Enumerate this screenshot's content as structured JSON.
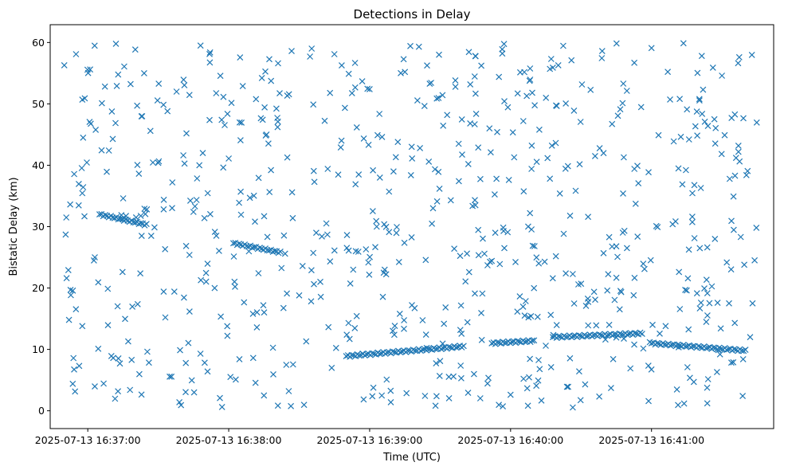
{
  "chart_data": {
    "type": "scatter",
    "title": "Detections in Delay",
    "xlabel": "Time (UTC)",
    "ylabel": "Bistatic Delay (km)",
    "marker": "x",
    "color": "#1f77b4",
    "grid": false,
    "legend": false,
    "x_range": [
      "2025-07-13 16:36:44",
      "2025-07-13 16:41:52"
    ],
    "ylim": [
      -2.9,
      62.9
    ],
    "x_ticks": [
      "2025-07-13 16:37:00",
      "2025-07-13 16:38:00",
      "2025-07-13 16:39:00",
      "2025-07-13 16:40:00",
      "2025-07-13 16:41:00"
    ],
    "y_ticks": [
      0,
      10,
      20,
      30,
      40,
      50,
      60
    ],
    "tracks": [
      {
        "t_start": "2025-07-13 16:37:05",
        "t_end": "2025-07-13 16:37:25",
        "delay_start": 32.0,
        "delay_end": 30.3
      },
      {
        "t_start": "2025-07-13 16:38:02",
        "t_end": "2025-07-13 16:38:22",
        "delay_start": 27.3,
        "delay_end": 25.8
      },
      {
        "t_start": "2025-07-13 16:38:50",
        "t_end": "2025-07-13 16:39:40",
        "delay_start": 8.9,
        "delay_end": 10.5
      },
      {
        "t_start": "2025-07-13 16:39:52",
        "t_end": "2025-07-13 16:40:10",
        "delay_start": 11.0,
        "delay_end": 11.4
      },
      {
        "t_start": "2025-07-13 16:40:18",
        "t_end": "2025-07-13 16:40:56",
        "delay_start": 12.0,
        "delay_end": 12.6
      },
      {
        "t_start": "2025-07-13 16:41:00",
        "t_end": "2025-07-13 16:41:40",
        "delay_start": 11.0,
        "delay_end": 9.8
      }
    ],
    "series": [
      {
        "x": [
          "2025-07-13 16:36:50",
          "2025-07-13 16:36:51",
          "2025-07-13 16:36:52",
          "2025-07-13 16:36:55",
          "2025-07-13 16:36:58",
          "2025-07-13 16:37:01",
          "2025-07-13 16:37:03",
          "2025-07-13 16:37:06",
          "2025-07-13 16:37:09",
          "2025-07-13 16:37:12",
          "2025-07-13 16:37:15",
          "2025-07-13 16:37:18",
          "2025-07-13 16:37:21",
          "2025-07-13 16:37:24",
          "2025-07-13 16:37:27",
          "2025-07-13 16:37:30",
          "2025-07-13 16:37:33",
          "2025-07-13 16:37:36",
          "2025-07-13 16:37:39",
          "2025-07-13 16:37:42",
          "2025-07-13 16:37:45",
          "2025-07-13 16:37:48",
          "2025-07-13 16:37:51",
          "2025-07-13 16:37:54",
          "2025-07-13 16:37:57",
          "2025-07-13 16:38:00",
          "2025-07-13 16:38:03",
          "2025-07-13 16:38:06",
          "2025-07-13 16:38:09",
          "2025-07-13 16:38:12",
          "2025-07-13 16:38:15",
          "2025-07-13 16:38:18",
          "2025-07-13 16:38:21",
          "2025-07-13 16:38:24",
          "2025-07-13 16:38:27",
          "2025-07-13 16:38:30",
          "2025-07-13 16:38:33",
          "2025-07-13 16:38:36",
          "2025-07-13 16:38:39",
          "2025-07-13 16:38:42",
          "2025-07-13 16:38:45",
          "2025-07-13 16:38:48",
          "2025-07-13 16:38:51",
          "2025-07-13 16:38:54",
          "2025-07-13 16:38:57",
          "2025-07-13 16:39:00",
          "2025-07-13 16:39:03",
          "2025-07-13 16:39:06",
          "2025-07-13 16:39:09",
          "2025-07-13 16:39:12",
          "2025-07-13 16:39:15",
          "2025-07-13 16:39:18",
          "2025-07-13 16:39:21",
          "2025-07-13 16:39:24",
          "2025-07-13 16:39:27",
          "2025-07-13 16:39:30",
          "2025-07-13 16:39:33",
          "2025-07-13 16:39:36",
          "2025-07-13 16:39:39",
          "2025-07-13 16:39:42",
          "2025-07-13 16:39:45",
          "2025-07-13 16:39:48",
          "2025-07-13 16:39:51",
          "2025-07-13 16:39:54",
          "2025-07-13 16:39:57",
          "2025-07-13 16:40:00",
          "2025-07-13 16:40:03",
          "2025-07-13 16:40:06",
          "2025-07-13 16:40:09",
          "2025-07-13 16:40:12",
          "2025-07-13 16:40:15",
          "2025-07-13 16:40:18",
          "2025-07-13 16:40:21",
          "2025-07-13 16:40:24",
          "2025-07-13 16:40:27",
          "2025-07-13 16:40:30",
          "2025-07-13 16:40:33",
          "2025-07-13 16:40:36",
          "2025-07-13 16:40:39",
          "2025-07-13 16:40:42",
          "2025-07-13 16:40:45",
          "2025-07-13 16:40:48",
          "2025-07-13 16:40:51",
          "2025-07-13 16:40:54",
          "2025-07-13 16:40:57",
          "2025-07-13 16:41:00",
          "2025-07-13 16:41:03",
          "2025-07-13 16:41:06",
          "2025-07-13 16:41:09",
          "2025-07-13 16:41:12",
          "2025-07-13 16:41:15",
          "2025-07-13 16:41:18",
          "2025-07-13 16:41:21",
          "2025-07-13 16:41:24",
          "2025-07-13 16:41:27",
          "2025-07-13 16:41:30",
          "2025-07-13 16:41:33",
          "2025-07-13 16:41:36",
          "2025-07-13 16:41:39",
          "2025-07-13 16:41:42",
          "2025-07-13 16:41:43"
        ],
        "y": [
          56.3,
          21.6,
          14.8,
          58.1,
          44.5,
          55.6,
          25.0,
          50.1,
          42.4,
          59.8,
          31.2,
          3.4,
          49.7,
          55.0,
          28.5,
          40.4,
          15.2,
          37.2,
          1.4,
          45.2,
          32.4,
          59.5,
          6.4,
          20.0,
          47.4,
          41.1,
          5.1,
          52.9,
          34.7,
          13.6,
          2.5,
          39.2,
          56.6,
          25.6,
          35.6,
          18.8,
          11.3,
          49.9,
          21.0,
          28.7,
          58.1,
          44.0,
          14.3,
          36.9,
          9.3,
          52.4,
          30.0,
          22.5,
          1.4,
          43.8,
          55.2,
          17.2,
          59.3,
          12.4,
          33.0,
          8.1,
          48.2,
          26.4,
          5.3,
          40.2,
          57.8,
          19.1,
          46.0,
          37.8,
          29.3,
          2.6,
          51.7,
          15.5,
          43.2,
          24.0,
          10.6,
          55.9,
          35.4,
          3.9,
          48.9,
          20.7,
          31.6,
          41.5,
          58.6,
          14.0,
          26.8,
          53.3,
          6.9,
          39.9,
          23.1,
          59.1,
          44.9,
          13.8,
          30.4,
          50.8,
          19.6,
          4.7,
          36.3,
          46.4,
          28.0,
          54.6,
          17.5,
          41.2,
          8.4,
          12.0,
          17.5
        ]
      }
    ]
  }
}
